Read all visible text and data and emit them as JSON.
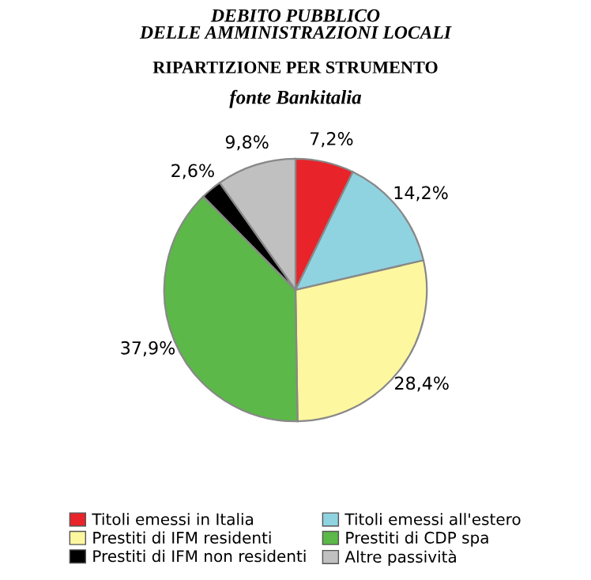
{
  "chart_data": {
    "type": "pie",
    "title": "DEBITO PUBBLICO\nDELLE AMMINISTRAZIONI LOCALI",
    "subtitle": "RIPARTIZIONE PER STRUMENTO",
    "annotations": [
      "fonte Bankitalia"
    ],
    "categories": [
      "Titoli emessi in Italia",
      "Titoli emessi all'estero",
      "Prestiti di IFM residenti",
      "Prestiti di CDP spa",
      "Prestiti di IFM non residenti",
      "Altre passività"
    ],
    "values": [
      7.2,
      14.2,
      28.4,
      37.9,
      2.6,
      9.8
    ],
    "value_labels": [
      "7,2%",
      "14,2%",
      "28,4%",
      "37,9%",
      "2,6%",
      "9,8%"
    ],
    "colors": [
      "#e8232a",
      "#8fd3e0",
      "#fdf7a0",
      "#5cb848",
      "#000000",
      "#c0c0c0"
    ],
    "legend": "bottom"
  }
}
